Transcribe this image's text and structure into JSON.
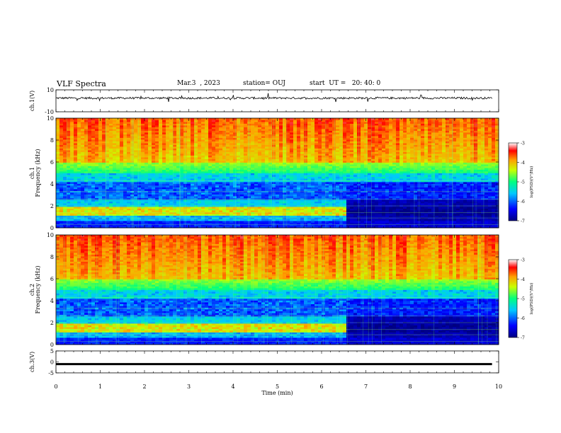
{
  "header": {
    "title": "VLF Spectra",
    "date": "Mar.3  , 2023",
    "station": "station= OUJ",
    "start": "start  UT =   20: 40: 0"
  },
  "chart_data": [
    {
      "type": "line",
      "panel": "ch1-waveform",
      "ylabel": "ch.1(V)",
      "ylim": [
        -10,
        10
      ],
      "yticks": [
        "10",
        "-10"
      ],
      "xlim": [
        0,
        10
      ],
      "series": [
        {
          "values": [
            2.5,
            2.5
          ]
        }
      ]
    },
    {
      "type": "heatmap",
      "panel": "ch1-spectrogram",
      "ylabel": "ch.1\nFrequency  (kHz)",
      "ylim": [
        0,
        10
      ],
      "yticks": [
        "0",
        "2",
        "4",
        "6",
        "8",
        "10"
      ],
      "xlim": [
        0,
        10
      ],
      "colorbar": {
        "label": "log(PSD)(V²/Hz)",
        "ticks": [
          "-3",
          "-4",
          "-5",
          "-6",
          "-7"
        ],
        "range": [
          -7,
          -3
        ]
      },
      "transition_min": 6.6
    },
    {
      "type": "heatmap",
      "panel": "ch2-spectrogram",
      "ylabel": "ch.2\nFrequency  (kHz)",
      "ylim": [
        0,
        10
      ],
      "yticks": [
        "0",
        "2",
        "4",
        "6",
        "8",
        "10"
      ],
      "xlim": [
        0,
        10
      ],
      "colorbar": {
        "label": "log(PSD)(V²/Hz)",
        "ticks": [
          "-3",
          "-4",
          "-5",
          "-6",
          "-7"
        ],
        "range": [
          -7,
          -3
        ]
      },
      "transition_min": 6.6
    },
    {
      "type": "line",
      "panel": "ch3-waveform",
      "ylabel": "ch.3(V)",
      "ylim": [
        -5,
        5
      ],
      "yticks": [
        "5",
        "0",
        "-5"
      ],
      "xlim": [
        0,
        10
      ],
      "xlabel": "Time  (min)",
      "xticks": [
        "0",
        "1",
        "2",
        "3",
        "4",
        "5",
        "6",
        "7",
        "8",
        "9",
        "10"
      ],
      "series": [
        {
          "values": [
            -1,
            -1
          ]
        }
      ]
    }
  ]
}
